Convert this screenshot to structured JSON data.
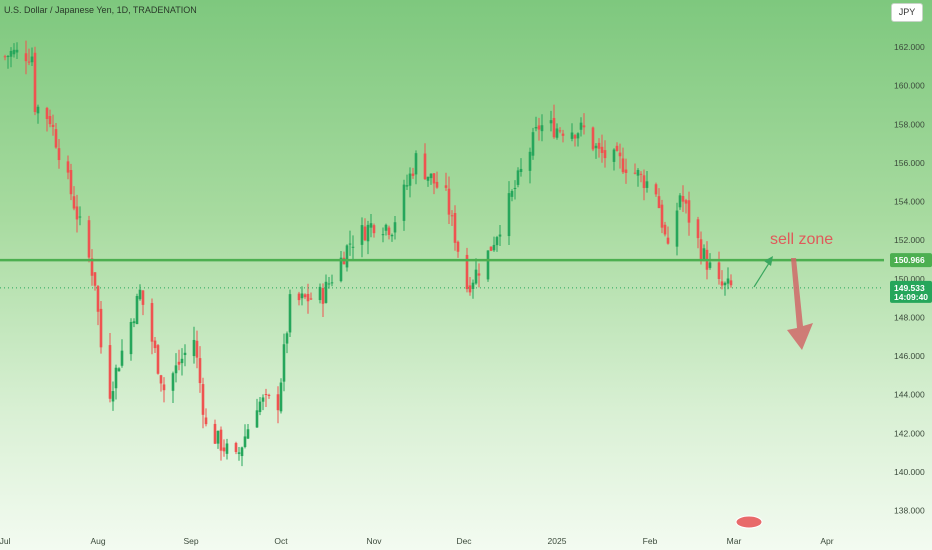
{
  "header": {
    "title": "U.S. Dollar / Japanese Yen, 1D, TRADENATION",
    "currency_label": "JPY"
  },
  "chart_data": {
    "type": "candlestick",
    "title": "U.S. Dollar / Japanese Yen, 1D, TRADENATION",
    "y_ticks": [
      138,
      140,
      142,
      144,
      146,
      148,
      150,
      152,
      154,
      156,
      158,
      160,
      162
    ],
    "y_tick_labels": [
      "138.000",
      "140.000",
      "142.000",
      "144.000",
      "146.000",
      "148.000",
      "150.000",
      "152.000",
      "154.000",
      "156.000",
      "158.000",
      "160.000",
      "162.000"
    ],
    "ylim": [
      137.2,
      163.3
    ],
    "x_tick_labels": [
      "Jul",
      "Aug",
      "Sep",
      "Oct",
      "Nov",
      "Dec",
      "2025",
      "Feb",
      "Mar",
      "Apr"
    ],
    "x_tick_dates": [
      "2024-07-01",
      "2024-08-01",
      "2024-09-01",
      "2024-10-01",
      "2024-11-01",
      "2024-12-01",
      "2025-01-01",
      "2025-02-01",
      "2025-03-01",
      "2025-04-01"
    ],
    "x_range": [
      "2024-07-01",
      "2025-04-12"
    ],
    "horizontal_line": {
      "value": 150.966,
      "label": "150.966",
      "color": "#4caf50"
    },
    "last_price": {
      "value": 149.533,
      "label": "149.533",
      "countdown": "14:09:40"
    },
    "colors": {
      "up": "#26a65b",
      "down": "#ef5350"
    },
    "annotation": "sell zone",
    "key_points": [
      {
        "date": "2024-07-01",
        "close": 161.5
      },
      {
        "date": "2024-07-03",
        "close": 161.7
      },
      {
        "date": "2024-07-10",
        "close": 161.6
      },
      {
        "date": "2024-07-11",
        "close": 159.0
      },
      {
        "date": "2024-07-16",
        "close": 158.3
      },
      {
        "date": "2024-07-24",
        "close": 153.9
      },
      {
        "date": "2024-07-31",
        "close": 149.9
      },
      {
        "date": "2024-08-02",
        "close": 146.5
      },
      {
        "date": "2024-08-05",
        "close": 144.2
      },
      {
        "date": "2024-08-15",
        "close": 149.3
      },
      {
        "date": "2024-08-23",
        "close": 144.3
      },
      {
        "date": "2024-09-02",
        "close": 146.9
      },
      {
        "date": "2024-09-06",
        "close": 142.3
      },
      {
        "date": "2024-09-16",
        "close": 140.6
      },
      {
        "date": "2024-09-23",
        "close": 143.6
      },
      {
        "date": "2024-09-30",
        "close": 143.6
      },
      {
        "date": "2024-10-04",
        "close": 148.7
      },
      {
        "date": "2024-10-15",
        "close": 149.2
      },
      {
        "date": "2024-10-24",
        "close": 151.9
      },
      {
        "date": "2024-11-01",
        "close": 152.9
      },
      {
        "date": "2024-11-07",
        "close": 152.7
      },
      {
        "date": "2024-11-15",
        "close": 156.2
      },
      {
        "date": "2024-11-25",
        "close": 154.2
      },
      {
        "date": "2024-12-02",
        "close": 149.6
      },
      {
        "date": "2024-12-09",
        "close": 151.3
      },
      {
        "date": "2024-12-18",
        "close": 154.7
      },
      {
        "date": "2024-12-26",
        "close": 157.9
      },
      {
        "date": "2025-01-10",
        "close": 157.7
      },
      {
        "date": "2025-01-15",
        "close": 156.5
      },
      {
        "date": "2025-01-24",
        "close": 155.9
      },
      {
        "date": "2025-02-03",
        "close": 154.6
      },
      {
        "date": "2025-02-07",
        "close": 151.3
      },
      {
        "date": "2025-02-11",
        "close": 154.4
      },
      {
        "date": "2025-02-18",
        "close": 151.5
      },
      {
        "date": "2025-02-24",
        "close": 149.6
      },
      {
        "date": "2025-02-28",
        "close": 149.533
      }
    ]
  }
}
